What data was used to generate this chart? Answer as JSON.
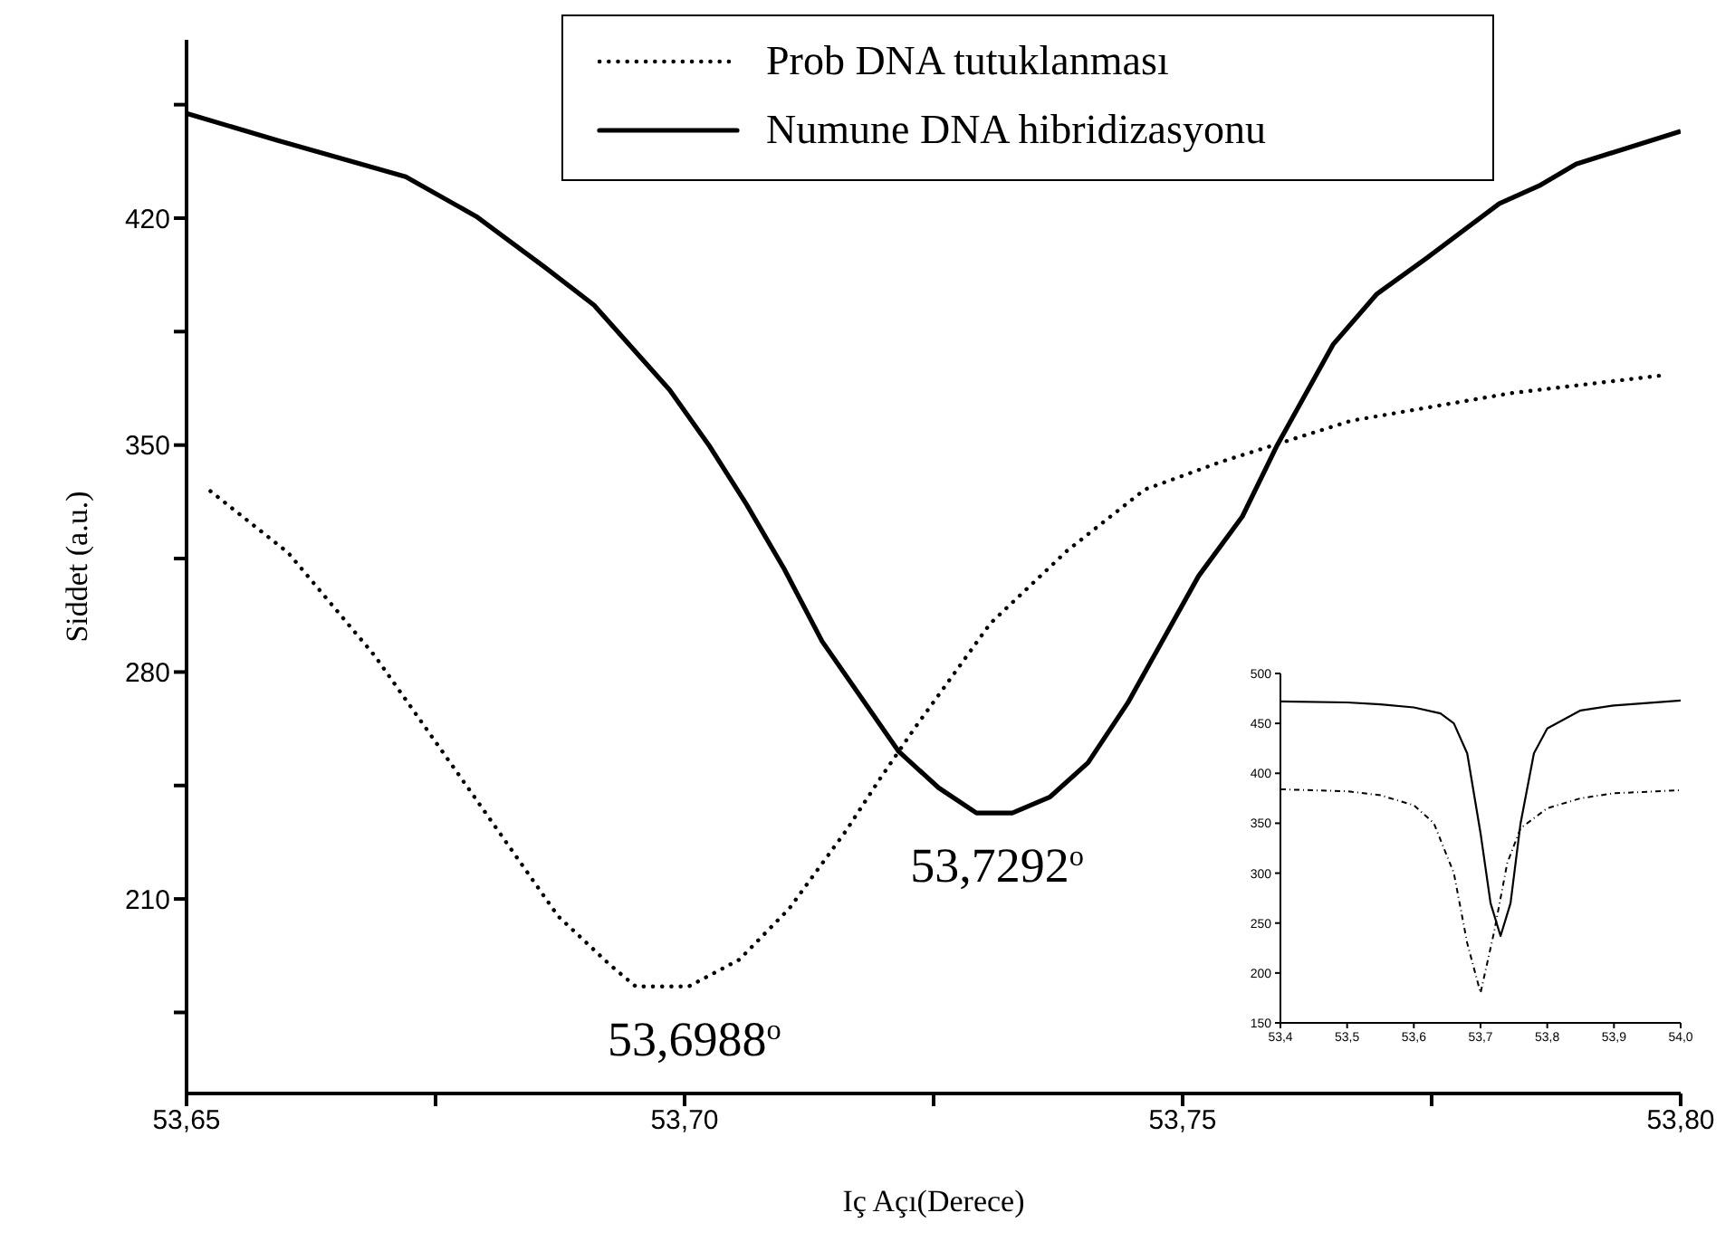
{
  "chart_data": [
    {
      "type": "line",
      "xlabel": "Iç Açı(Derece)",
      "ylabel": "Siddet (a.u.)",
      "xlim": [
        53.65,
        53.8
      ],
      "xticks": [
        {
          "value": 53.65,
          "label": "53,65"
        },
        {
          "value": 53.675,
          "label": null
        },
        {
          "value": 53.7,
          "label": "53,70"
        },
        {
          "value": 53.725,
          "label": null
        },
        {
          "value": 53.75,
          "label": "53,75"
        },
        {
          "value": 53.775,
          "label": null
        },
        {
          "value": 53.8,
          "label": "53,80"
        }
      ],
      "ylim": [
        150,
        475
      ],
      "yticks": [
        {
          "value": 175,
          "label": null
        },
        210,
        {
          "value": 245,
          "label": null
        },
        280,
        {
          "value": 315,
          "label": null
        },
        350,
        {
          "value": 385,
          "label": null
        },
        420,
        {
          "value": 455,
          "label": null
        }
      ],
      "legend": "top right",
      "series": [
        {
          "name": "Prob DNA tutuklanması",
          "color": "#000000",
          "line_style": "dotted",
          "x": [
            53.6524,
            53.6602,
            53.6689,
            53.678,
            53.6873,
            53.6925,
            53.6951,
            53.7004,
            53.7055,
            53.7105,
            53.7162,
            53.7196,
            53.7231,
            53.7307,
            53.7384,
            53.7462,
            53.754,
            53.7669,
            53.7829,
            53.7987
          ],
          "values": [
            335.8,
            316.8,
            285,
            245.4,
            204.7,
            189.7,
            183,
            183,
            191.3,
            207,
            231,
            247,
            262.7,
            295,
            317.4,
            336.3,
            345,
            357.5,
            366,
            371.7
          ]
        },
        {
          "name": "Numune DNA hibridizasyonu",
          "color": "#000000",
          "line_style": "solid",
          "x": [
            53.65,
            53.6591,
            53.672,
            53.6791,
            53.6859,
            53.6909,
            53.6985,
            53.7025,
            53.7062,
            53.71,
            53.7138,
            53.7215,
            53.7255,
            53.7293,
            53.7329,
            53.7367,
            53.7405,
            53.7445,
            53.7516,
            53.756,
            53.7595,
            53.7651,
            53.7695,
            53.7745,
            53.7818,
            53.7858,
            53.7895,
            53.8
          ],
          "values": [
            452.3,
            444,
            432.8,
            420.5,
            405,
            393.2,
            367,
            349.7,
            331.8,
            311.8,
            289.5,
            255.5,
            244.3,
            236.5,
            236.5,
            241.5,
            252,
            270.5,
            309.6,
            328,
            350,
            381,
            396.6,
            407.7,
            424.5,
            430,
            436.7,
            446.8
          ]
        }
      ],
      "annotations": [
        {
          "text": "53,7292$^{o}$",
          "x": 53.7292,
          "y": 236.5
        },
        {
          "text": "53,6988$^{o}$",
          "x": 53.6988,
          "y": 183
        }
      ]
    },
    {
      "type": "line",
      "xlim": [
        53.4,
        54.0
      ],
      "xticks": [
        {
          "value": 53.4,
          "label": "53,4"
        },
        {
          "value": 53.5,
          "label": "53,5"
        },
        {
          "value": 53.6,
          "label": "53,6"
        },
        {
          "value": 53.7,
          "label": "53,7"
        },
        {
          "value": 53.8,
          "label": "53,8"
        },
        {
          "value": 53.9,
          "label": "53,9"
        },
        {
          "value": 54.0,
          "label": "54,0"
        }
      ],
      "ylim": [
        150,
        500
      ],
      "yticks": [
        150,
        200,
        250,
        300,
        350,
        400,
        450,
        500
      ],
      "series": [
        {
          "color": "#000000",
          "line_style": "dotted",
          "x": [
            53.4,
            53.5,
            53.55,
            53.6,
            53.63,
            53.66,
            53.68,
            53.7,
            53.72,
            53.74,
            53.76,
            53.8,
            53.85,
            53.9,
            54.0
          ],
          "values": [
            384,
            382,
            378,
            368,
            350,
            300,
            230,
            180,
            240,
            310,
            345,
            365,
            375,
            380,
            383
          ]
        },
        {
          "color": "#000000",
          "line_style": "solid",
          "x": [
            53.4,
            53.5,
            53.55,
            53.6,
            53.64,
            53.66,
            53.68,
            53.7,
            53.715,
            53.73,
            53.745,
            53.76,
            53.78,
            53.8,
            53.85,
            53.9,
            54.0
          ],
          "values": [
            472,
            471,
            469,
            466,
            460,
            450,
            420,
            340,
            270,
            237,
            270,
            350,
            420,
            445,
            463,
            468,
            473
          ]
        }
      ]
    }
  ]
}
